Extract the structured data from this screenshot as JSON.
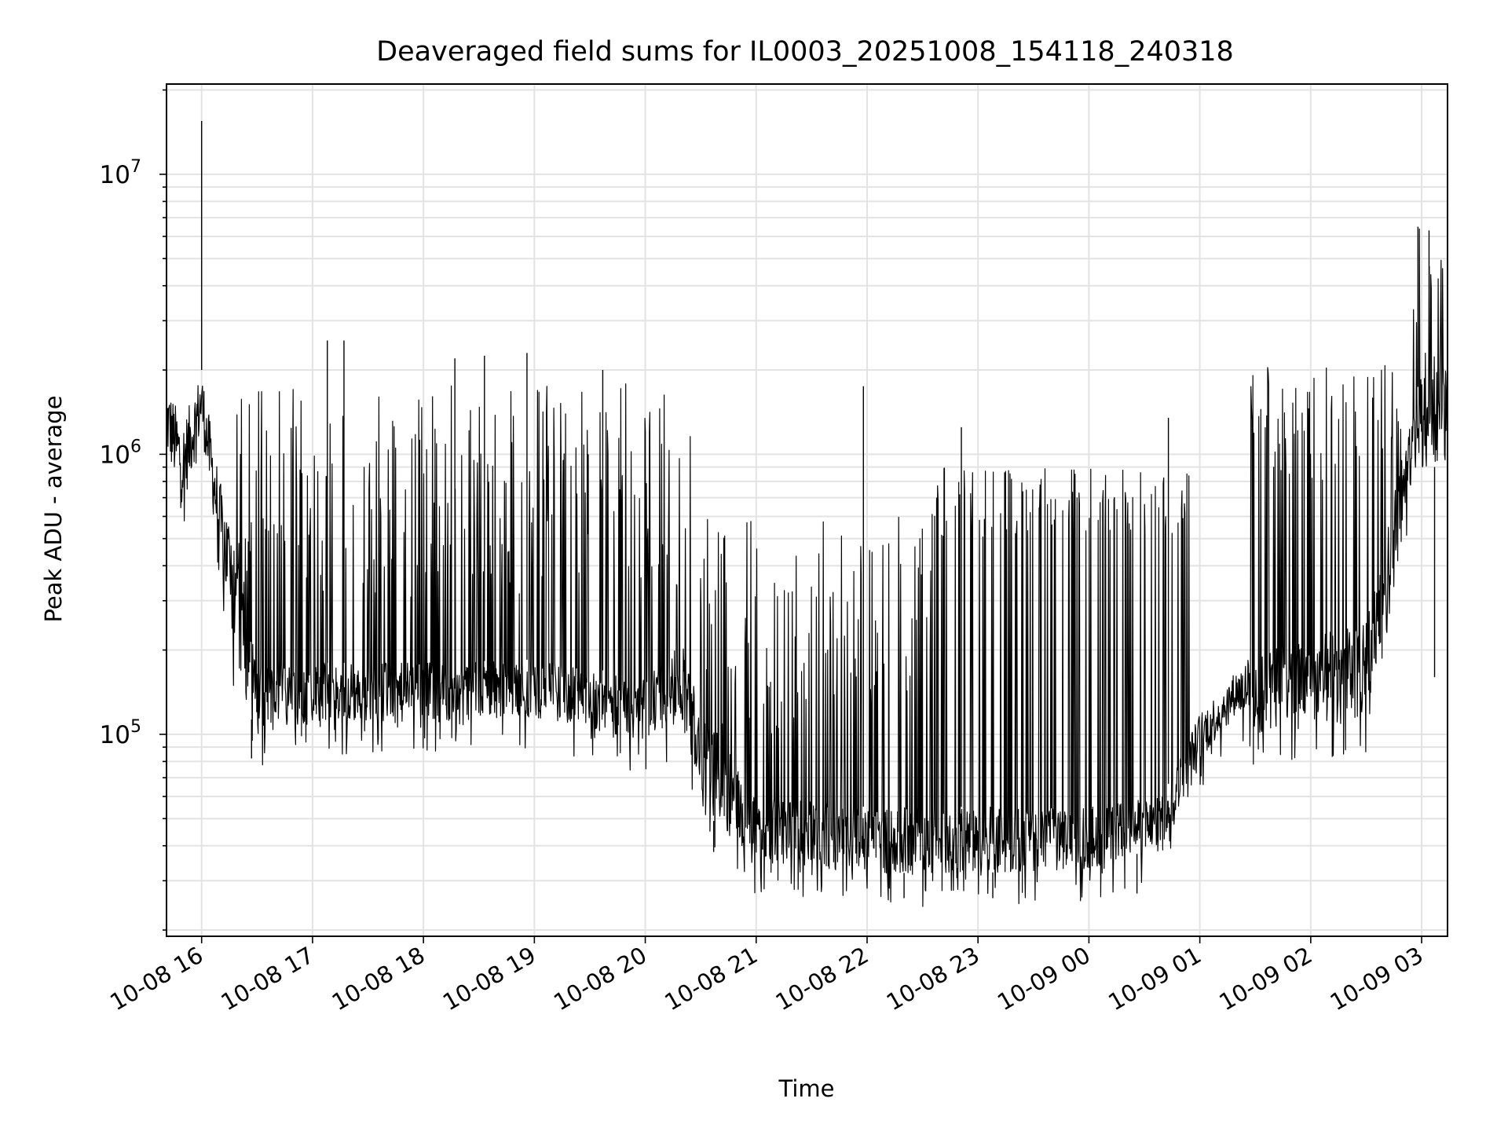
{
  "chart_data": {
    "type": "line",
    "title": "Deaveraged field sums for IL0003_20251008_154118_240318",
    "xlabel": "Time",
    "ylabel": "Peak ADU - average",
    "yscale": "log",
    "ylim": [
      19000,
      21000000
    ],
    "xlim": [
      "10-08 15:41",
      "10-09 03:14"
    ],
    "grid": true,
    "line_color": "#000000",
    "grid_color": "#e3e3e3",
    "x_ticks": [
      {
        "t": "10-08 16:00",
        "label": "10-08 16"
      },
      {
        "t": "10-08 17:00",
        "label": "10-08 17"
      },
      {
        "t": "10-08 18:00",
        "label": "10-08 18"
      },
      {
        "t": "10-08 19:00",
        "label": "10-08 19"
      },
      {
        "t": "10-08 20:00",
        "label": "10-08 20"
      },
      {
        "t": "10-08 21:00",
        "label": "10-08 21"
      },
      {
        "t": "10-08 22:00",
        "label": "10-08 22"
      },
      {
        "t": "10-08 23:00",
        "label": "10-08 23"
      },
      {
        "t": "10-09 00:00",
        "label": "10-09 00"
      },
      {
        "t": "10-09 01:00",
        "label": "10-09 01"
      },
      {
        "t": "10-09 02:00",
        "label": "10-09 02"
      },
      {
        "t": "10-09 03:00",
        "label": "10-09 03"
      }
    ],
    "y_ticks": [
      {
        "value": 100000,
        "base": "10",
        "exp": "5"
      },
      {
        "value": 1000000,
        "base": "10",
        "exp": "6"
      },
      {
        "value": 10000000,
        "base": "10",
        "exp": "7"
      }
    ],
    "envelope": {
      "description_of_bands": "typical floor / upper noise level of the signal over time",
      "points": [
        {
          "t": "10-08 15:41",
          "low": 1000000,
          "high": 1800000
        },
        {
          "t": "10-08 15:50",
          "low": 650000,
          "high": 1300000
        },
        {
          "t": "10-08 16:00",
          "low": 1200000,
          "high": 2000000
        },
        {
          "t": "10-08 16:10",
          "low": 400000,
          "high": 800000
        },
        {
          "t": "10-08 16:20",
          "low": 150000,
          "high": 500000
        },
        {
          "t": "10-08 16:30",
          "low": 100000,
          "high": 180000
        },
        {
          "t": "10-08 17:00",
          "low": 110000,
          "high": 180000
        },
        {
          "t": "10-08 18:00",
          "low": 110000,
          "high": 180000
        },
        {
          "t": "10-08 19:00",
          "low": 115000,
          "high": 185000
        },
        {
          "t": "10-08 20:00",
          "low": 95000,
          "high": 160000
        },
        {
          "t": "10-08 20:20",
          "low": 110000,
          "high": 220000
        },
        {
          "t": "10-08 20:30",
          "low": 60000,
          "high": 130000
        },
        {
          "t": "10-08 20:40",
          "low": 45000,
          "high": 100000
        },
        {
          "t": "10-08 21:00",
          "low": 35000,
          "high": 60000
        },
        {
          "t": "10-08 22:00",
          "low": 32000,
          "high": 55000
        },
        {
          "t": "10-08 23:00",
          "low": 32000,
          "high": 55000
        },
        {
          "t": "10-09 00:00",
          "low": 33000,
          "high": 55000
        },
        {
          "t": "10-09 00:40",
          "low": 40000,
          "high": 60000
        },
        {
          "t": "10-09 01:00",
          "low": 80000,
          "high": 120000
        },
        {
          "t": "10-09 01:20",
          "low": 120000,
          "high": 170000
        },
        {
          "t": "10-09 01:30",
          "low": 100000,
          "high": 200000
        },
        {
          "t": "10-09 02:30",
          "low": 110000,
          "high": 250000
        },
        {
          "t": "10-09 02:50",
          "low": 600000,
          "high": 1000000
        },
        {
          "t": "10-09 03:00",
          "low": 900000,
          "high": 2000000
        },
        {
          "t": "10-09 03:14",
          "low": 900000,
          "high": 2000000
        }
      ]
    },
    "spike_regions": [
      {
        "start": "10-08 16:15",
        "end": "10-08 20:25",
        "peak_low": 300000,
        "peak_high": 1800000
      },
      {
        "start": "10-08 20:25",
        "end": "10-08 22:35",
        "peak_low": 100000,
        "peak_high": 600000
      },
      {
        "start": "10-08 22:35",
        "end": "10-09 00:55",
        "peak_low": 500000,
        "peak_high": 900000
      },
      {
        "start": "10-09 01:25",
        "end": "10-09 02:55",
        "peak_low": 800000,
        "peak_high": 2100000
      },
      {
        "start": "10-09 02:55",
        "end": "10-09 03:14",
        "peak_low": 2000000,
        "peak_high": 6500000
      }
    ],
    "notable_peaks": [
      {
        "t": "10-08 16:00",
        "value": 15500000
      },
      {
        "t": "10-08 17:08",
        "value": 2550000
      },
      {
        "t": "10-08 17:17",
        "value": 2550000
      },
      {
        "t": "10-08 18:17",
        "value": 2200000
      },
      {
        "t": "10-08 18:33",
        "value": 2250000
      },
      {
        "t": "10-08 18:56",
        "value": 2300000
      },
      {
        "t": "10-08 19:37",
        "value": 2000000
      },
      {
        "t": "10-08 21:58",
        "value": 1750000
      },
      {
        "t": "10-08 22:51",
        "value": 1250000
      },
      {
        "t": "10-09 00:43",
        "value": 1350000
      },
      {
        "t": "10-09 02:58",
        "value": 6500000
      },
      {
        "t": "10-09 03:04",
        "value": 6300000
      }
    ],
    "notable_dips": [
      {
        "t": "10-08 16:27",
        "value": 82000
      },
      {
        "t": "10-08 20:37",
        "value": 38000
      },
      {
        "t": "10-08 22:20",
        "value": 26000
      },
      {
        "t": "10-08 23:08",
        "value": 26000
      },
      {
        "t": "10-09 00:26",
        "value": 27000
      },
      {
        "t": "10-09 03:07",
        "value": 160000
      }
    ]
  }
}
